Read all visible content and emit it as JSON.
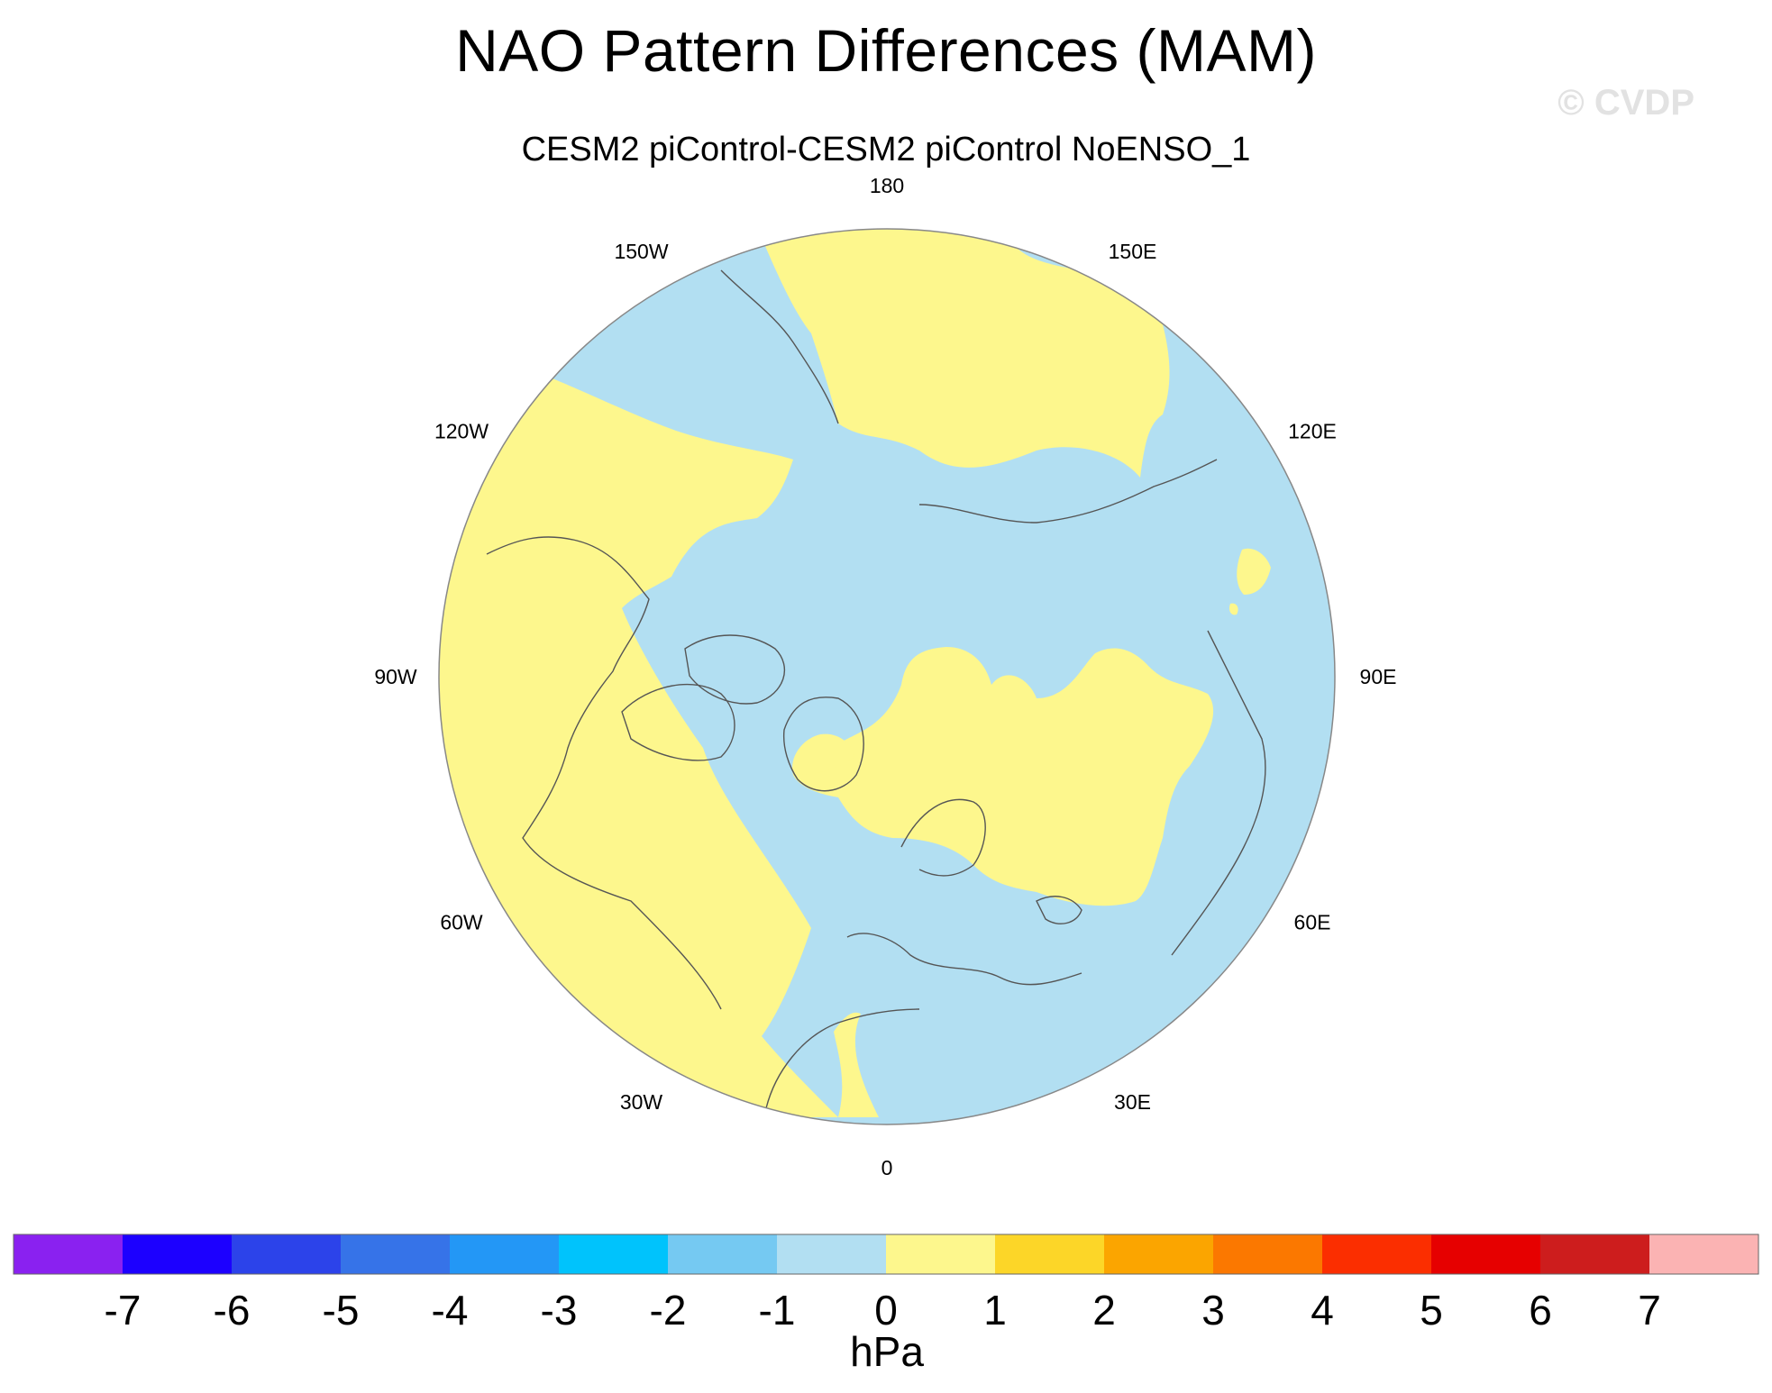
{
  "title": "NAO Pattern Differences (MAM)",
  "subtitle": "CESM2 piControl-CESM2 piControl NoENSO_1",
  "watermark": "© CVDP",
  "map": {
    "projection": "north-polar-stereographic",
    "longitude_labels": [
      "180",
      "150E",
      "120E",
      "90E",
      "60E",
      "30E",
      "0",
      "30W",
      "60W",
      "90W",
      "120W",
      "150W"
    ],
    "fill_colors": {
      "positive_0_to_1": "#fdf78d",
      "negative_minus1_to_0": "#b2dff2"
    },
    "coastline_color": "#555555"
  },
  "colorbar": {
    "units": "hPa",
    "ticks": [
      "-7",
      "-6",
      "-5",
      "-4",
      "-3",
      "-2",
      "-1",
      "0",
      "1",
      "2",
      "3",
      "4",
      "5",
      "6",
      "7"
    ],
    "colors": [
      "#8a21f0",
      "#1c00ff",
      "#2c43ea",
      "#3673e8",
      "#2397f6",
      "#00c3fc",
      "#75c9f2",
      "#b2dff2",
      "#fdf78d",
      "#fcd628",
      "#fba500",
      "#fb7800",
      "#fb2e00",
      "#e60000",
      "#cd1d1d",
      "#fbb3b3"
    ]
  }
}
